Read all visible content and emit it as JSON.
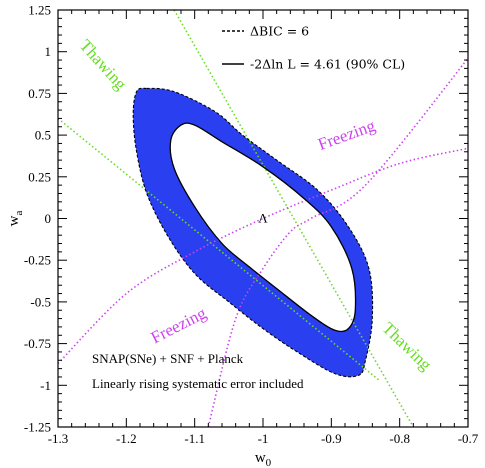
{
  "chart_data": {
    "type": "contour",
    "xlabel": "w",
    "xlabel_sub": "0",
    "ylabel": "w",
    "ylabel_sub": "a",
    "xlim": [
      -1.3,
      -0.7
    ],
    "ylim": [
      -1.25,
      1.25
    ],
    "x_ticks": [
      -1.3,
      -1.2,
      -1.1,
      -1.0,
      -0.9,
      -0.8,
      -0.7
    ],
    "x_tick_labels": [
      "-1.3",
      "-1.2",
      "-1.1",
      "-1",
      "-0.9",
      "-0.8",
      "-0.7"
    ],
    "y_ticks": [
      -1.25,
      -1.0,
      -0.75,
      -0.5,
      -0.25,
      0,
      0.25,
      0.5,
      0.75,
      1.0,
      1.25
    ],
    "y_tick_labels": [
      "-1.25",
      "-1",
      "-0.75",
      "-0.5",
      "-0.25",
      "0",
      "0.25",
      "0.5",
      "0.75",
      "1",
      "1.25"
    ],
    "legend": [
      {
        "label": "ΔBIC = 6",
        "style": "dashed"
      },
      {
        "label": "-2Δln L = 4.61 (90% CL)",
        "style": "solid"
      }
    ],
    "annotations": [
      "SNAP(SNe) + SNF + Planck",
      "Linearly rising systematic error included"
    ],
    "fiducial_point": {
      "x": -1.0,
      "y": 0.0,
      "label": "Λ"
    },
    "bic_region": {
      "color": "#2a3ff0",
      "outline": "dashed",
      "points": [
        [
          -1.17,
          0.78
        ],
        [
          -1.13,
          0.76
        ],
        [
          -1.07,
          0.64
        ],
        [
          -1.03,
          0.5
        ],
        [
          -0.98,
          0.35
        ],
        [
          -0.92,
          0.17
        ],
        [
          -0.875,
          -0.05
        ],
        [
          -0.845,
          -0.3
        ],
        [
          -0.84,
          -0.6
        ],
        [
          -0.85,
          -0.85
        ],
        [
          -0.86,
          -0.94
        ],
        [
          -0.895,
          -0.93
        ],
        [
          -0.95,
          -0.8
        ],
        [
          -1.0,
          -0.66
        ],
        [
          -1.05,
          -0.5
        ],
        [
          -1.1,
          -0.33
        ],
        [
          -1.14,
          -0.1
        ],
        [
          -1.17,
          0.15
        ],
        [
          -1.185,
          0.4
        ],
        [
          -1.19,
          0.62
        ],
        [
          -1.185,
          0.76
        ]
      ]
    },
    "cl_ellipse": {
      "outline": "solid",
      "points": [
        [
          -1.12,
          0.56
        ],
        [
          -1.1,
          0.56
        ],
        [
          -1.06,
          0.46
        ],
        [
          -1.0,
          0.31
        ],
        [
          -0.94,
          0.12
        ],
        [
          -0.9,
          -0.05
        ],
        [
          -0.87,
          -0.3
        ],
        [
          -0.865,
          -0.55
        ],
        [
          -0.875,
          -0.66
        ],
        [
          -0.895,
          -0.67
        ],
        [
          -0.93,
          -0.58
        ],
        [
          -0.98,
          -0.42
        ],
        [
          -1.02,
          -0.29
        ],
        [
          -1.06,
          -0.15
        ],
        [
          -1.1,
          0.07
        ],
        [
          -1.13,
          0.3
        ],
        [
          -1.135,
          0.47
        ]
      ]
    },
    "boundary_curves": [
      {
        "label": "Thawing",
        "color": "#66dd22",
        "kind": "line",
        "points": [
          [
            -1.13,
            1.25
          ],
          [
            -0.78,
            -1.25
          ]
        ]
      },
      {
        "label": "Thawing",
        "color": "#66dd22",
        "kind": "line",
        "points": [
          [
            -1.3,
            0.6
          ],
          [
            -0.83,
            -0.97
          ]
        ]
      },
      {
        "label": "Freezing",
        "color": "#cc44ee",
        "kind": "curve",
        "points": [
          [
            -1.3,
            -0.87
          ],
          [
            -1.2,
            -0.45
          ],
          [
            -1.1,
            -0.2
          ],
          [
            -1.0,
            0.0
          ],
          [
            -0.9,
            0.17
          ],
          [
            -0.8,
            0.33
          ],
          [
            -0.7,
            0.42
          ]
        ]
      },
      {
        "label": "Freezing",
        "color": "#cc44ee",
        "kind": "curve",
        "points": [
          [
            -1.08,
            -1.25
          ],
          [
            -1.04,
            -0.6
          ],
          [
            -1.0,
            -0.3
          ],
          [
            -0.96,
            -0.08
          ],
          [
            -0.93,
            0.0
          ],
          [
            -0.85,
            0.2
          ],
          [
            -0.7,
            0.96
          ]
        ]
      }
    ],
    "curve_labels": [
      {
        "text": "Thawing",
        "color": "#66dd22",
        "x": -1.24,
        "y": 0.9,
        "angle": 48
      },
      {
        "text": "Freezing",
        "color": "#cc44ee",
        "x": -0.875,
        "y": 0.47,
        "angle": -20
      },
      {
        "text": "Freezing",
        "color": "#cc44ee",
        "x": -1.12,
        "y": -0.67,
        "angle": -27
      },
      {
        "text": "Thawing",
        "color": "#66dd22",
        "x": -0.795,
        "y": -0.79,
        "angle": 44
      }
    ]
  }
}
